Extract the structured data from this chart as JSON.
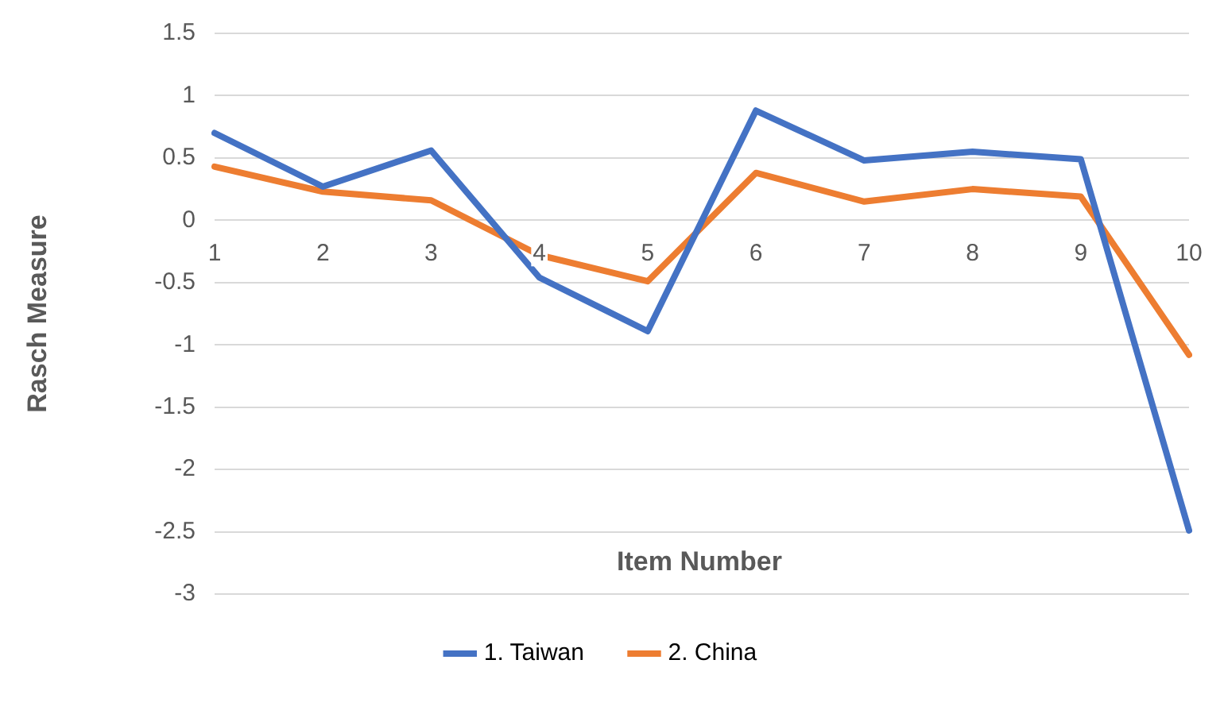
{
  "chart_data": {
    "type": "line",
    "xlabel": "Item Number",
    "ylabel": "Rasch Measure",
    "categories": [
      "1",
      "2",
      "3",
      "4",
      "5",
      "6",
      "7",
      "8",
      "9",
      "10"
    ],
    "series": [
      {
        "name": "1. Taiwan",
        "color": "#4472c4",
        "values": [
          0.7,
          0.27,
          0.56,
          -0.46,
          -0.89,
          0.88,
          0.48,
          0.55,
          0.49,
          -2.49
        ]
      },
      {
        "name": "2. China",
        "color": "#ed7d31",
        "values": [
          0.43,
          0.23,
          0.16,
          -0.28,
          -0.49,
          0.38,
          0.15,
          0.25,
          0.19,
          -1.08
        ]
      }
    ],
    "ylim": [
      -3,
      1.5
    ],
    "yticks": [
      -3,
      -2.5,
      -2,
      -1.5,
      -1,
      -0.5,
      0,
      0.5,
      1,
      1.5
    ],
    "grid": "y",
    "legend": "bottom",
    "marker": "none",
    "line_style": "solid"
  }
}
